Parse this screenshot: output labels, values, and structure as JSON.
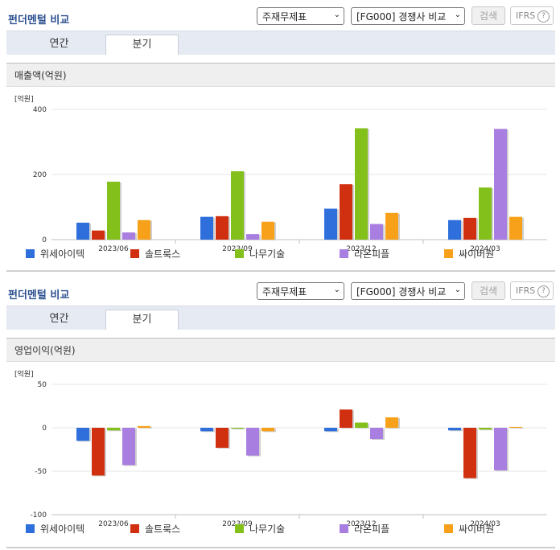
{
  "panels": [
    {
      "title": "펀더멘털 비교",
      "select1": "주재무제표",
      "select2": "[FG000] 경쟁사 비교",
      "search_label": "검색",
      "ifrs_label": "IFRS",
      "ifrs_help": "?",
      "tabs": [
        "연간",
        "분기"
      ],
      "active_tab": "분기",
      "chart_title": "매출액(억원)"
    },
    {
      "title": "펀더멘털 비교",
      "select1": "주재무제표",
      "select2": "[FG000] 경쟁사 비교",
      "search_label": "검색",
      "ifrs_label": "IFRS",
      "ifrs_help": "?",
      "tabs": [
        "연간",
        "분기"
      ],
      "active_tab": "분기",
      "chart_title": "영업이익(억원)"
    }
  ],
  "chart_data": [
    {
      "type": "bar",
      "title": "매출액(억원)",
      "unit_label": "[억원]",
      "categories": [
        "2023/06",
        "2023/09",
        "2023/12",
        "2024/03"
      ],
      "yticks": [
        0,
        200,
        400
      ],
      "ylim": [
        0,
        400
      ],
      "grid": true,
      "legend_position": "bottom",
      "series": [
        {
          "name": "위세아이텍",
          "color": "#2f6fdc",
          "values": [
            52,
            70,
            95,
            60
          ]
        },
        {
          "name": "솔트룩스",
          "color": "#d13010",
          "values": [
            28,
            72,
            170,
            67
          ]
        },
        {
          "name": "나무기술",
          "color": "#84c01b",
          "values": [
            178,
            210,
            342,
            160
          ]
        },
        {
          "name": "라온피플",
          "color": "#a87ee0",
          "values": [
            22,
            17,
            48,
            340
          ]
        },
        {
          "name": "싸이버원",
          "color": "#f7a11a",
          "values": [
            60,
            55,
            82,
            70
          ]
        }
      ]
    },
    {
      "type": "bar",
      "title": "영업이익(억원)",
      "unit_label": "[억원]",
      "categories": [
        "2023/06",
        "2023/09",
        "2023/12",
        "2024/03"
      ],
      "yticks": [
        -100,
        -50,
        0,
        50
      ],
      "ylim": [
        -100,
        50
      ],
      "grid": true,
      "legend_position": "bottom",
      "series": [
        {
          "name": "위세아이텍",
          "color": "#2f6fdc",
          "values": [
            -15,
            -4,
            -4,
            -3
          ]
        },
        {
          "name": "솔트룩스",
          "color": "#d13010",
          "values": [
            -55,
            -23,
            21,
            -58
          ]
        },
        {
          "name": "나무기술",
          "color": "#84c01b",
          "values": [
            -3,
            -1,
            6,
            -2
          ]
        },
        {
          "name": "라온피플",
          "color": "#a87ee0",
          "values": [
            -43,
            -32,
            -13,
            -49
          ]
        },
        {
          "name": "싸이버원",
          "color": "#f7a11a",
          "values": [
            2,
            -4,
            12,
            1
          ]
        }
      ]
    }
  ]
}
